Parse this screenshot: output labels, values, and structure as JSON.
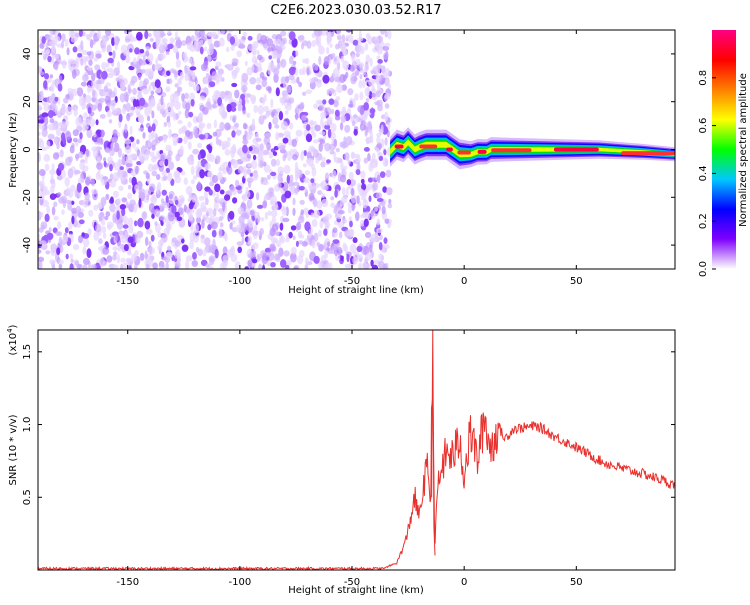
{
  "title": "C2E6.2023.030.03.52.R17",
  "chart_data": [
    {
      "type": "heatmap",
      "xlabel": "Height of straight line (km)",
      "ylabel": "Frequency (Hz)",
      "xlim": [
        -190,
        94
      ],
      "ylim": [
        -50,
        50
      ],
      "xticks": [
        -150,
        -100,
        -50,
        0,
        50
      ],
      "yticks": [
        -40,
        -20,
        0,
        20,
        40
      ],
      "noise_region_x": [
        -190,
        -33
      ],
      "signal_track": [
        {
          "x": -33,
          "y": -1
        },
        {
          "x": -30,
          "y": 2
        },
        {
          "x": -27,
          "y": 1
        },
        {
          "x": -25,
          "y": 3
        },
        {
          "x": -22,
          "y": 0
        },
        {
          "x": -20,
          "y": 1
        },
        {
          "x": -17,
          "y": 2
        },
        {
          "x": -13,
          "y": 2
        },
        {
          "x": -8,
          "y": 2
        },
        {
          "x": -5,
          "y": 0
        },
        {
          "x": -2,
          "y": -2
        },
        {
          "x": 3,
          "y": -2
        },
        {
          "x": 6,
          "y": -1
        },
        {
          "x": 10,
          "y": -1
        },
        {
          "x": 12,
          "y": 0
        },
        {
          "x": 20,
          "y": 0
        },
        {
          "x": 40,
          "y": 0
        },
        {
          "x": 60,
          "y": 0
        },
        {
          "x": 80,
          "y": -1
        },
        {
          "x": 94,
          "y": -2
        }
      ],
      "colorbar": {
        "label": "Normalized spectral amplitude",
        "range": [
          0.0,
          1.0
        ],
        "ticks": [
          "0.0",
          "0.2",
          "0.4",
          "0.6",
          "0.8"
        ],
        "colors": [
          "#ffffff",
          "#7f00ff",
          "#0000ff",
          "#00c8ff",
          "#00ff00",
          "#ffff00",
          "#ff8000",
          "#ff0000",
          "#ff0080"
        ]
      }
    },
    {
      "type": "line",
      "xlabel": "Height of straight line (km)",
      "ylabel": "SNR (10 * v/v)",
      "y_multiplier_label": "(x10",
      "y_multiplier_exp": "4",
      "y_multiplier_close": ")",
      "xlim": [
        -190,
        94
      ],
      "ylim": [
        0,
        1.65
      ],
      "xticks": [
        -150,
        -100,
        -50,
        0,
        50
      ],
      "yticks": [
        "0.5",
        "1.0",
        "1.5"
      ],
      "color": "#e8302c",
      "series": [
        {
          "x": [
            -190,
            -60,
            -36,
            -30,
            -26,
            -22,
            -20,
            -18,
            -16,
            -15,
            -14,
            -13.5,
            -13,
            -12,
            -10,
            -8,
            -5,
            -2,
            0,
            3,
            6,
            9,
            12,
            15,
            18,
            22,
            27,
            32,
            35,
            40,
            48,
            55,
            62,
            70,
            80,
            88,
            94
          ],
          "y": [
            0.01,
            0.01,
            0.01,
            0.05,
            0.2,
            0.5,
            0.35,
            0.6,
            0.72,
            0.4,
            1.65,
            0.55,
            0.15,
            0.55,
            0.7,
            0.8,
            0.78,
            0.9,
            0.65,
            0.95,
            0.75,
            1.05,
            0.82,
            1.0,
            0.9,
            0.97,
            0.98,
            0.99,
            0.97,
            0.92,
            0.86,
            0.8,
            0.74,
            0.7,
            0.66,
            0.62,
            0.58
          ]
        }
      ]
    }
  ]
}
